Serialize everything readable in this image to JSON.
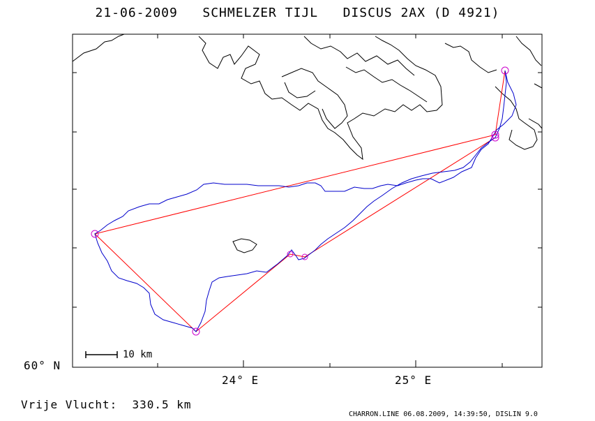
{
  "title": "21-06-2009   SCHMELZER TIJL   DISCUS 2AX (D 4921)",
  "axes": {
    "latitude_label": "60° N",
    "longitude_labels": [
      "24° E",
      "25° E"
    ]
  },
  "scale_bar": {
    "label": "10 km",
    "length_km": 10
  },
  "distance_text": "Vrije Vlucht:  330.5 km",
  "footer": "CHARRON.LINE 06.08.2009, 14:39:50, DISLIN 9.0",
  "colors": {
    "coastline": "#000000",
    "track": "#0000cc",
    "task_lines": "#ff0000",
    "turnpoints": "#cc00cc",
    "frame": "#000000"
  },
  "turnpoints_count": 7
}
